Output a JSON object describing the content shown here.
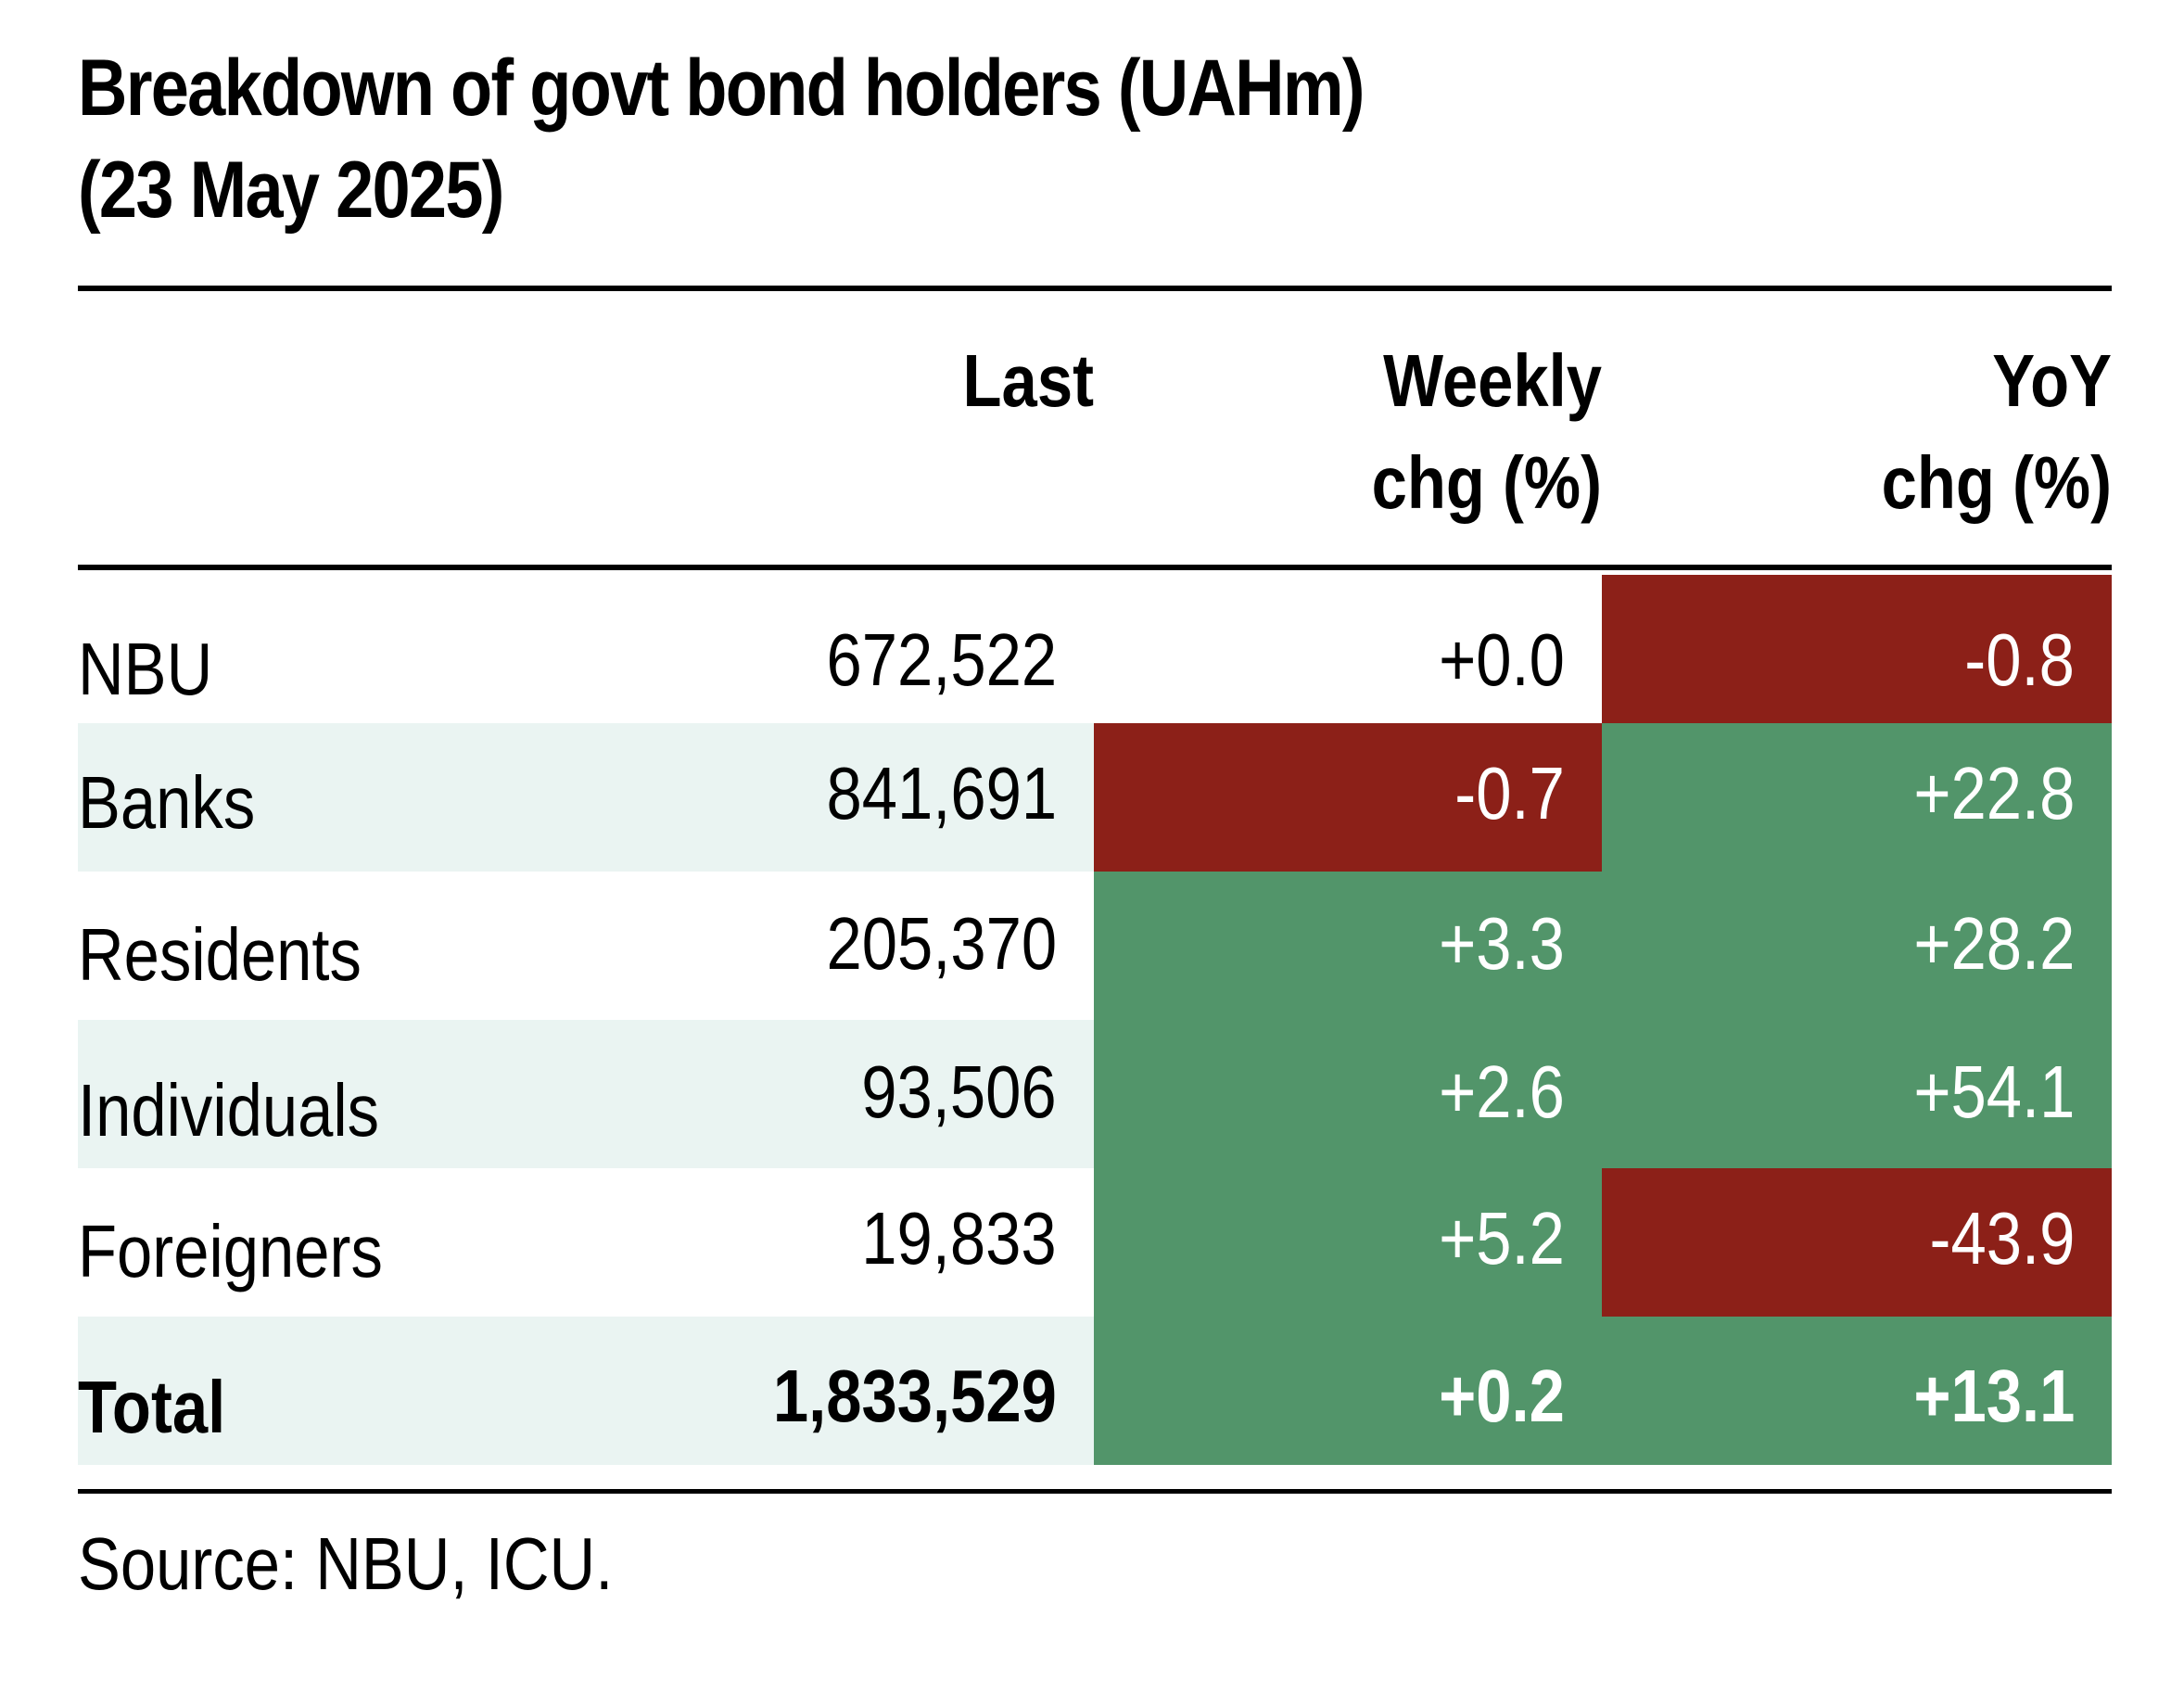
{
  "title_line1": "Breakdown of govt bond holders (UAHm)",
  "title_line2": "(23 May 2025)",
  "colors": {
    "negative": "#8c2018",
    "positive": "#52956a",
    "row_shade": "#eaf4f2"
  },
  "chart_data": {
    "type": "table",
    "title": "Breakdown of govt bond holders (UAHm) (23 May 2025)",
    "columns": [
      "",
      "Last",
      "Weekly chg (%)",
      "YoY chg (%)"
    ],
    "header": {
      "last": "Last",
      "weekly_line1": "Weekly",
      "weekly_line2": "chg (%)",
      "yoy_line1": "YoY",
      "yoy_line2": "chg (%)"
    },
    "rows": [
      {
        "label": "NBU",
        "last": "672,522",
        "weekly": "+0.0",
        "yoy": "-0.8",
        "weekly_value": 0.0,
        "yoy_value": -0.8,
        "weekly_color": "none",
        "yoy_color": "negative"
      },
      {
        "label": "Banks",
        "last": "841,691",
        "weekly": "-0.7",
        "yoy": "+22.8",
        "weekly_value": -0.7,
        "yoy_value": 22.8,
        "weekly_color": "negative",
        "yoy_color": "positive"
      },
      {
        "label": "Residents",
        "last": "205,370",
        "weekly": "+3.3",
        "yoy": "+28.2",
        "weekly_value": 3.3,
        "yoy_value": 28.2,
        "weekly_color": "positive",
        "yoy_color": "positive"
      },
      {
        "label": "Individuals",
        "last": "93,506",
        "weekly": "+2.6",
        "yoy": "+54.1",
        "weekly_value": 2.6,
        "yoy_value": 54.1,
        "weekly_color": "positive",
        "yoy_color": "positive"
      },
      {
        "label": "Foreigners",
        "last": "19,833",
        "weekly": "+5.2",
        "yoy": "-43.9",
        "weekly_value": 5.2,
        "yoy_value": -43.9,
        "weekly_color": "positive",
        "yoy_color": "negative"
      },
      {
        "label": "Total",
        "last": "1,833,529",
        "weekly": "+0.2",
        "yoy": "+13.1",
        "weekly_value": 0.2,
        "yoy_value": 13.1,
        "weekly_color": "positive",
        "yoy_color": "positive",
        "bold": true
      }
    ]
  },
  "source": "Source: NBU, ICU."
}
